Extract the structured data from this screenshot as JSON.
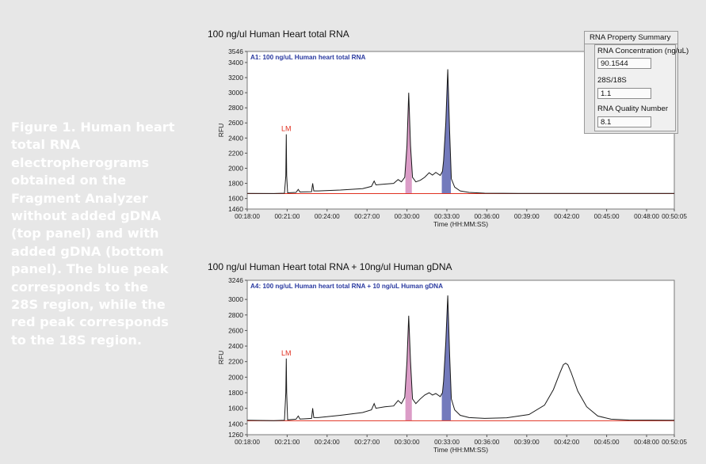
{
  "caption": "Figure 1. Human heart total RNA electropherograms obtained on the Fragment Analyzer without added gDNA (top panel) and with added gDNA (bottom panel). The blue peak corresponds to the 28S region, while the red peak corresponds to the 18S region.",
  "summary": {
    "title": "RNA Property Summary",
    "conc_label": "RNA Concentration (ng/uL)",
    "conc_value": "90.1544",
    "ratio_label": "28S/18S",
    "ratio_value": "1.1",
    "rqn_label": "RNA Quality Number",
    "rqn_value": "8.1"
  },
  "colors": {
    "trace": "#1a1a1a",
    "baseline": "#e03020",
    "peak_18s_fill": "#d58bbd",
    "peak_28s_fill": "#5a63b0",
    "sample_label": "#2a3aa0",
    "lm_label": "#e03020",
    "caption_text": "#ffffff"
  },
  "chart_data": [
    {
      "type": "line",
      "title": "100 ng/ul Human Heart total RNA",
      "sample_label": "A1: 100 ng/uL Human heart total RNA",
      "xlabel": "Time (HH:MM:SS)",
      "ylabel": "RFU",
      "xlim": [
        1080,
        3005
      ],
      "ylim": [
        1460,
        3546
      ],
      "yticks": [
        1460,
        1600,
        1800,
        2000,
        2200,
        2400,
        2600,
        2800,
        3000,
        3200,
        3400,
        3546
      ],
      "xticks": [
        {
          "t": 1080,
          "label": "00:18:00"
        },
        {
          "t": 1260,
          "label": "00:21:00"
        },
        {
          "t": 1440,
          "label": "00:24:00"
        },
        {
          "t": 1620,
          "label": "00:27:00"
        },
        {
          "t": 1800,
          "label": "00:30:00"
        },
        {
          "t": 1980,
          "label": "00:33:00"
        },
        {
          "t": 2160,
          "label": "00:36:00"
        },
        {
          "t": 2340,
          "label": "00:39:00"
        },
        {
          "t": 2520,
          "label": "00:42:00"
        },
        {
          "t": 2700,
          "label": "00:45:00"
        },
        {
          "t": 2880,
          "label": "00:48:00"
        },
        {
          "t": 3005,
          "label": "00:50:05"
        }
      ],
      "marker": {
        "label": "LM",
        "t": 1256,
        "rfu": 2450
      },
      "baseline_rfu": 1665,
      "series": [
        {
          "values": [
            [
              1080,
              1668
            ],
            [
              1200,
              1665
            ],
            [
              1248,
              1670
            ],
            [
              1254,
              1900
            ],
            [
              1256,
              2450
            ],
            [
              1258,
              1900
            ],
            [
              1262,
              1675
            ],
            [
              1300,
              1680
            ],
            [
              1310,
              1720
            ],
            [
              1318,
              1685
            ],
            [
              1370,
              1690
            ],
            [
              1375,
              1800
            ],
            [
              1380,
              1700
            ],
            [
              1400,
              1700
            ],
            [
              1500,
              1712
            ],
            [
              1600,
              1730
            ],
            [
              1640,
              1760
            ],
            [
              1652,
              1830
            ],
            [
              1660,
              1780
            ],
            [
              1700,
              1790
            ],
            [
              1740,
              1800
            ],
            [
              1760,
              1850
            ],
            [
              1775,
              1820
            ],
            [
              1790,
              1880
            ],
            [
              1800,
              2300
            ],
            [
              1808,
              3000
            ],
            [
              1816,
              2300
            ],
            [
              1825,
              1880
            ],
            [
              1840,
              1820
            ],
            [
              1860,
              1840
            ],
            [
              1880,
              1880
            ],
            [
              1900,
              1940
            ],
            [
              1915,
              1910
            ],
            [
              1930,
              1945
            ],
            [
              1950,
              1905
            ],
            [
              1960,
              1960
            ],
            [
              1965,
              2100
            ],
            [
              1975,
              2600
            ],
            [
              1984,
              3310
            ],
            [
              1992,
              2500
            ],
            [
              2000,
              1860
            ],
            [
              2015,
              1750
            ],
            [
              2040,
              1700
            ],
            [
              2080,
              1680
            ],
            [
              2150,
              1670
            ],
            [
              2300,
              1668
            ],
            [
              2500,
              1666
            ],
            [
              2800,
              1666
            ],
            [
              3005,
              1666
            ]
          ]
        }
      ],
      "fills": [
        {
          "name": "18S",
          "from": 1793,
          "to": 1822,
          "color_key": "peak_18s_fill"
        },
        {
          "name": "28S",
          "from": 1957,
          "to": 1998,
          "color_key": "peak_28s_fill"
        }
      ]
    },
    {
      "type": "line",
      "title": "100 ng/ul Human Heart total RNA + 10ng/ul Human gDNA",
      "sample_label": "A4: 100 ng/uL Human heart total RNA + 10 ng/uL Human gDNA",
      "xlabel": "Time (HH:MM:SS)",
      "ylabel": "RFU",
      "xlim": [
        1080,
        3005
      ],
      "ylim": [
        1260,
        3246
      ],
      "yticks": [
        1260,
        1400,
        1600,
        1800,
        2000,
        2200,
        2400,
        2600,
        2800,
        3000,
        3246
      ],
      "xticks": [
        {
          "t": 1080,
          "label": "00:18:00"
        },
        {
          "t": 1260,
          "label": "00:21:00"
        },
        {
          "t": 1440,
          "label": "00:24:00"
        },
        {
          "t": 1620,
          "label": "00:27:00"
        },
        {
          "t": 1800,
          "label": "00:30:00"
        },
        {
          "t": 1980,
          "label": "00:33:00"
        },
        {
          "t": 2160,
          "label": "00:36:00"
        },
        {
          "t": 2340,
          "label": "00:39:00"
        },
        {
          "t": 2520,
          "label": "00:42:00"
        },
        {
          "t": 2700,
          "label": "00:45:00"
        },
        {
          "t": 2880,
          "label": "00:48:00"
        },
        {
          "t": 3005,
          "label": "00:50:05"
        }
      ],
      "marker": {
        "label": "LM",
        "t": 1256,
        "rfu": 2240
      },
      "baseline_rfu": 1440,
      "series": [
        {
          "values": [
            [
              1080,
              1445
            ],
            [
              1200,
              1440
            ],
            [
              1248,
              1445
            ],
            [
              1254,
              1800
            ],
            [
              1256,
              2240
            ],
            [
              1258,
              1800
            ],
            [
              1262,
              1450
            ],
            [
              1300,
              1460
            ],
            [
              1310,
              1500
            ],
            [
              1318,
              1462
            ],
            [
              1370,
              1470
            ],
            [
              1375,
              1600
            ],
            [
              1380,
              1480
            ],
            [
              1400,
              1480
            ],
            [
              1500,
              1510
            ],
            [
              1600,
              1545
            ],
            [
              1640,
              1580
            ],
            [
              1652,
              1660
            ],
            [
              1660,
              1600
            ],
            [
              1700,
              1620
            ],
            [
              1740,
              1630
            ],
            [
              1760,
              1700
            ],
            [
              1775,
              1660
            ],
            [
              1790,
              1740
            ],
            [
              1800,
              2200
            ],
            [
              1808,
              2790
            ],
            [
              1816,
              2200
            ],
            [
              1825,
              1720
            ],
            [
              1840,
              1660
            ],
            [
              1860,
              1720
            ],
            [
              1880,
              1770
            ],
            [
              1900,
              1800
            ],
            [
              1915,
              1770
            ],
            [
              1930,
              1790
            ],
            [
              1950,
              1750
            ],
            [
              1960,
              1800
            ],
            [
              1965,
              1950
            ],
            [
              1975,
              2450
            ],
            [
              1984,
              3050
            ],
            [
              1992,
              2300
            ],
            [
              2000,
              1720
            ],
            [
              2015,
              1580
            ],
            [
              2040,
              1510
            ],
            [
              2080,
              1480
            ],
            [
              2150,
              1470
            ],
            [
              2250,
              1478
            ],
            [
              2350,
              1520
            ],
            [
              2420,
              1640
            ],
            [
              2460,
              1840
            ],
            [
              2490,
              2060
            ],
            [
              2505,
              2160
            ],
            [
              2515,
              2180
            ],
            [
              2525,
              2160
            ],
            [
              2540,
              2060
            ],
            [
              2570,
              1820
            ],
            [
              2610,
              1620
            ],
            [
              2660,
              1500
            ],
            [
              2720,
              1460
            ],
            [
              2800,
              1448
            ],
            [
              3005,
              1445
            ]
          ]
        }
      ],
      "fills": [
        {
          "name": "18S",
          "from": 1793,
          "to": 1822,
          "color_key": "peak_18s_fill"
        },
        {
          "name": "28S",
          "from": 1957,
          "to": 1998,
          "color_key": "peak_28s_fill"
        }
      ]
    }
  ]
}
